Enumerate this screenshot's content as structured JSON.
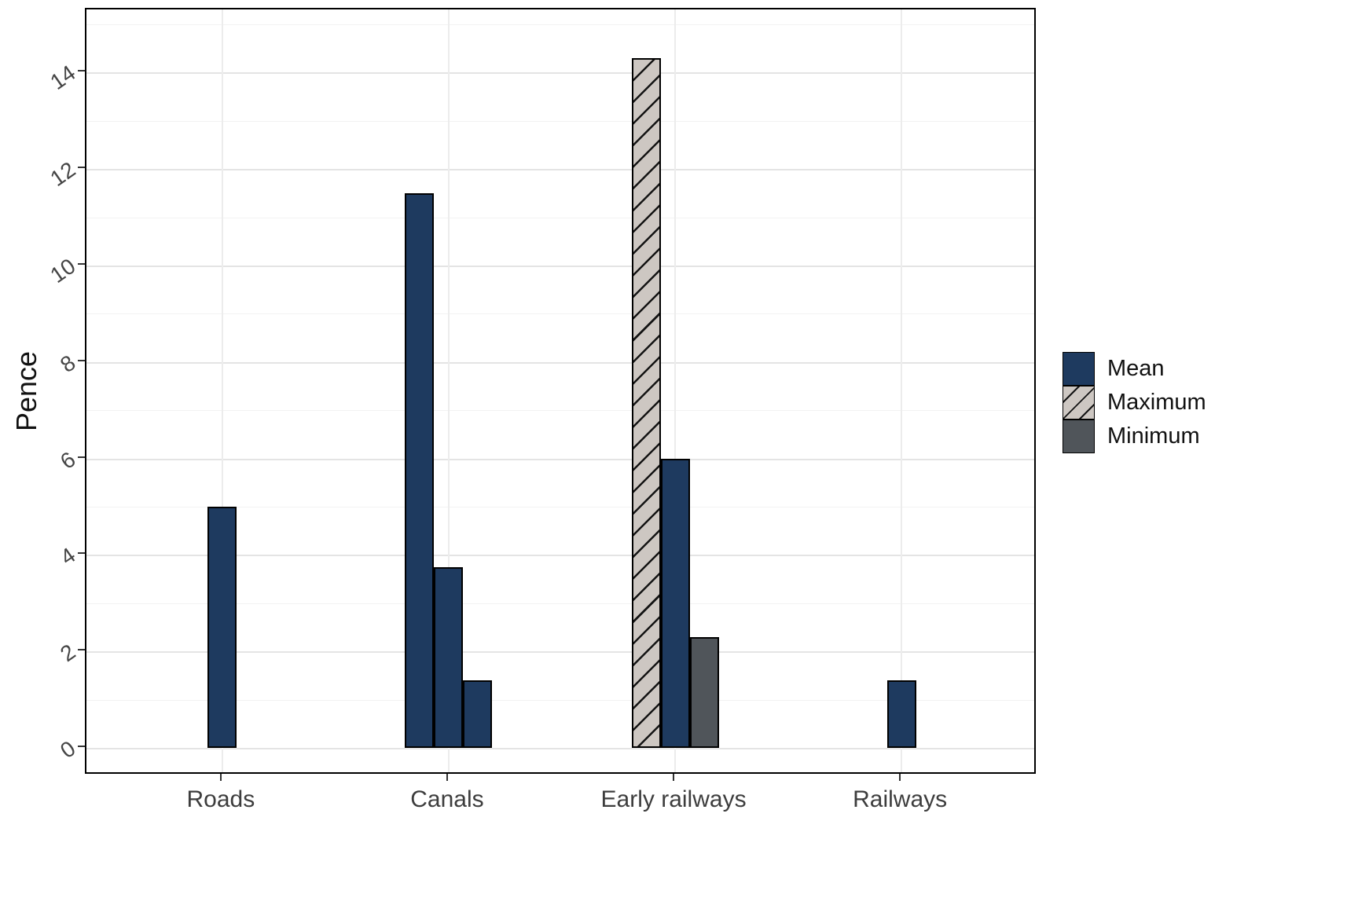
{
  "chart_data": {
    "type": "bar",
    "title": "",
    "xlabel": "",
    "ylabel": "Pence",
    "categories": [
      "Roads",
      "Canals",
      "Early railways",
      "Railways"
    ],
    "yticks": [
      0,
      2,
      4,
      6,
      8,
      10,
      12,
      14
    ],
    "ylim": [
      0,
      15.3
    ],
    "grid": true,
    "legend_position": "right",
    "legend": [
      {
        "label": "Mean"
      },
      {
        "label": "Maximum"
      },
      {
        "label": "Minimum"
      }
    ],
    "series_styles": {
      "Mean": {
        "fill": "#1e3a5f",
        "hatch": false
      },
      "Maximum": {
        "fill": "#cdc7c2",
        "hatch": true
      },
      "Minimum": {
        "fill": "#50555a",
        "hatch": false
      }
    },
    "bars": [
      {
        "category": "Roads",
        "series": "Mean",
        "value": 5.0
      },
      {
        "category": "Canals",
        "series": "Mean",
        "value": 11.5
      },
      {
        "category": "Canals",
        "series": "Mean",
        "value": 3.75
      },
      {
        "category": "Canals",
        "series": "Mean",
        "value": 1.4
      },
      {
        "category": "Early railways",
        "series": "Maximum",
        "value": 14.3
      },
      {
        "category": "Early railways",
        "series": "Mean",
        "value": 6.0
      },
      {
        "category": "Early railways",
        "series": "Minimum",
        "value": 2.3
      },
      {
        "category": "Railways",
        "series": "Mean",
        "value": 1.4
      }
    ],
    "colors": {
      "bar_outline": "#000000",
      "grid_major": "#e4e4e4",
      "axis_text": "#454545"
    }
  }
}
